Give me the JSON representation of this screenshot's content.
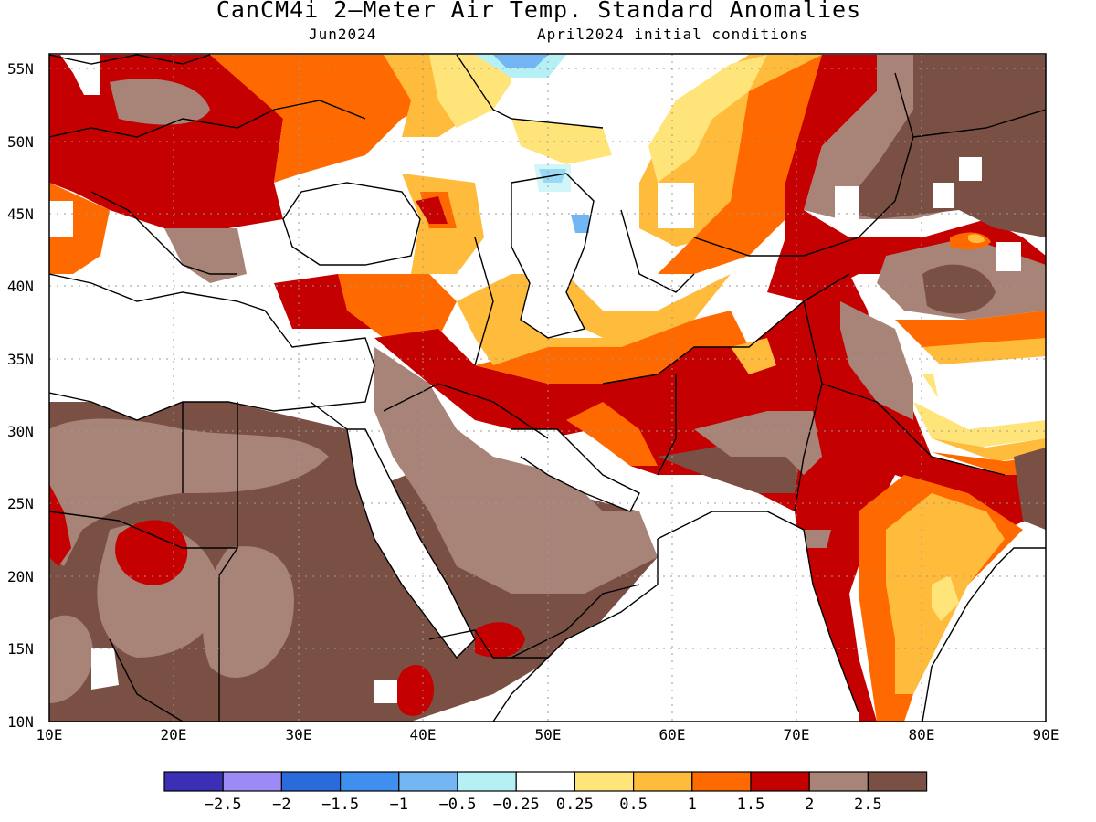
{
  "title": "CanCM4i 2–Meter Air Temp. Standard Anomalies",
  "subtitle_left": "Jun2024",
  "subtitle_right": "April2024 initial conditions",
  "lat_labels": [
    "55N",
    "50N",
    "45N",
    "40N",
    "35N",
    "30N",
    "25N",
    "20N",
    "15N",
    "10N"
  ],
  "lon_labels": [
    "10E",
    "20E",
    "30E",
    "40E",
    "50E",
    "60E",
    "70E",
    "80E",
    "90E"
  ],
  "legend": {
    "colors": [
      "#3a2fb5",
      "#9d8bf5",
      "#2a6bdb",
      "#3f90ee",
      "#74b6f4",
      "#b4f0f4",
      "#ffffff",
      "#ffe47a",
      "#ffbb3c",
      "#ff6a00",
      "#c40000",
      "#a88378",
      "#7a5045"
    ],
    "labels": [
      "−2.5",
      "−2",
      "−1.5",
      "−1",
      "−0.5",
      "−0.25",
      "0.25",
      "0.5",
      "1",
      "1.5",
      "2",
      "2.5"
    ]
  }
}
